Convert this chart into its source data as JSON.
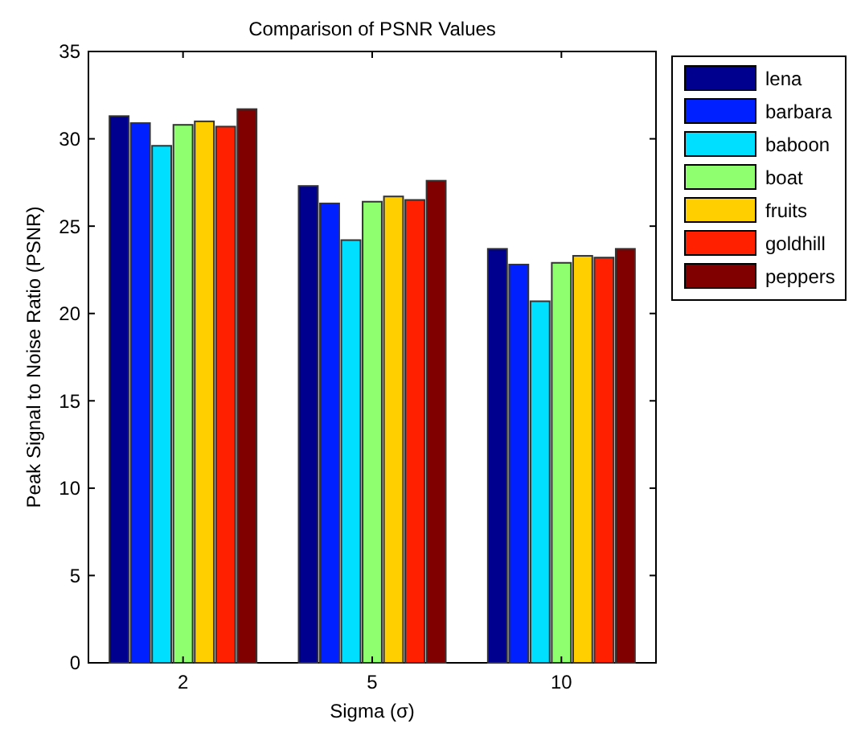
{
  "chart_data": {
    "type": "bar",
    "title": "Comparison of PSNR Values",
    "xlabel": "Sigma (σ)",
    "ylabel": "Peak Signal to Noise Ratio (PSNR)",
    "categories": [
      "2",
      "5",
      "10"
    ],
    "series": [
      {
        "name": "lena",
        "color": "#00008f",
        "values": [
          31.3,
          27.3,
          23.7
        ]
      },
      {
        "name": "barbara",
        "color": "#0020ff",
        "values": [
          30.9,
          26.3,
          22.8
        ]
      },
      {
        "name": "baboon",
        "color": "#00dfff",
        "values": [
          29.6,
          24.2,
          20.7
        ]
      },
      {
        "name": "boat",
        "color": "#8fff70",
        "values": [
          30.8,
          26.4,
          22.9
        ]
      },
      {
        "name": "fruits",
        "color": "#ffcf00",
        "values": [
          31.0,
          26.7,
          23.3
        ]
      },
      {
        "name": "goldhill",
        "color": "#ff2000",
        "values": [
          30.7,
          26.5,
          23.2
        ]
      },
      {
        "name": "peppers",
        "color": "#800000",
        "values": [
          31.7,
          27.6,
          23.7
        ]
      }
    ],
    "ylim": [
      0,
      35
    ],
    "yticks": [
      0,
      5,
      10,
      15,
      20,
      25,
      30,
      35
    ],
    "grid": false,
    "legend": "right"
  }
}
